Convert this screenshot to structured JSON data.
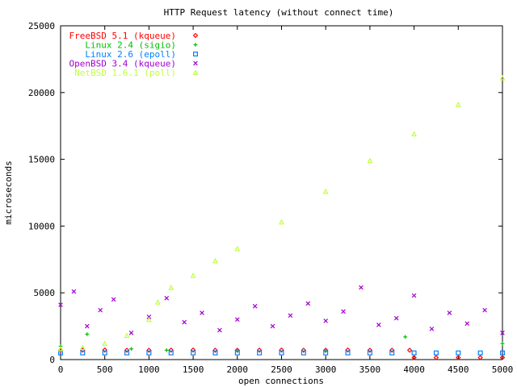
{
  "chart_data": {
    "type": "scatter",
    "title": "HTTP Request latency (without connect time)",
    "xlabel": "open connections",
    "ylabel": "microseconds",
    "xlim": [
      0,
      5000
    ],
    "ylim": [
      0,
      25000
    ],
    "xticks": [
      "0",
      "500",
      "1000",
      "1500",
      "2000",
      "2500",
      "3000",
      "3500",
      "4000",
      "4500",
      "5000"
    ],
    "yticks": [
      "0",
      "5000",
      "10000",
      "15000",
      "20000",
      "25000"
    ],
    "grid": false,
    "legend_position": "top-left",
    "series": [
      {
        "name": "FreeBSD 5.1 (kqueue)",
        "color": "#ff0000",
        "marker": "diamond",
        "x": [
          0,
          250,
          500,
          750,
          1000,
          1250,
          1500,
          1750,
          2000,
          2250,
          2500,
          2750,
          3000,
          3250,
          3500,
          3750,
          3950,
          4000,
          4250,
          4500,
          4750,
          5000
        ],
        "y": [
          700,
          710,
          720,
          700,
          700,
          710,
          720,
          700,
          700,
          710,
          720,
          700,
          700,
          720,
          700,
          700,
          700,
          150,
          150,
          150,
          150,
          150
        ]
      },
      {
        "name": "Linux 2.4 (sigio)",
        "color": "#00c000",
        "marker": "plus",
        "x": [
          0,
          300,
          800,
          1200,
          2000,
          3000,
          3900,
          5000
        ],
        "y": [
          1000,
          1900,
          800,
          700,
          650,
          650,
          1700,
          1200
        ]
      },
      {
        "name": "Linux 2.6 (epoll)",
        "color": "#0080ff",
        "marker": "square",
        "x": [
          0,
          250,
          500,
          750,
          1000,
          1250,
          1500,
          1750,
          2000,
          2250,
          2500,
          2750,
          3000,
          3250,
          3500,
          3750,
          4000,
          4250,
          4500,
          4750,
          5000
        ],
        "y": [
          500,
          500,
          500,
          500,
          500,
          500,
          500,
          500,
          500,
          500,
          500,
          500,
          500,
          500,
          500,
          500,
          500,
          500,
          500,
          500,
          500
        ]
      },
      {
        "name": "OpenBSD 3.4 (kqueue)",
        "color": "#a000d0",
        "marker": "cross",
        "x": [
          0,
          150,
          300,
          450,
          600,
          800,
          1000,
          1200,
          1400,
          1600,
          1800,
          2000,
          2200,
          2400,
          2600,
          2800,
          3000,
          3200,
          3400,
          3600,
          3800,
          4000,
          4200,
          4400,
          4600,
          4800,
          5000
        ],
        "y": [
          4100,
          5100,
          2500,
          3700,
          4500,
          2000,
          3200,
          4600,
          2800,
          3500,
          2200,
          3000,
          4000,
          2500,
          3300,
          4200,
          2900,
          3600,
          5400,
          2600,
          3100,
          4800,
          2300,
          3500,
          2700,
          3700,
          2000
        ]
      },
      {
        "name": "NetBSD 1.6.1 (poll)",
        "color": "#c0ff40",
        "marker": "triangle",
        "x": [
          0,
          250,
          500,
          750,
          1000,
          1100,
          1250,
          1500,
          1750,
          2000,
          2500,
          3000,
          3500,
          4000,
          4500,
          5000
        ],
        "y": [
          800,
          900,
          1200,
          1800,
          3000,
          4300,
          5400,
          6300,
          7400,
          8300,
          10300,
          12600,
          14900,
          16900,
          19100,
          21100
        ]
      }
    ]
  }
}
